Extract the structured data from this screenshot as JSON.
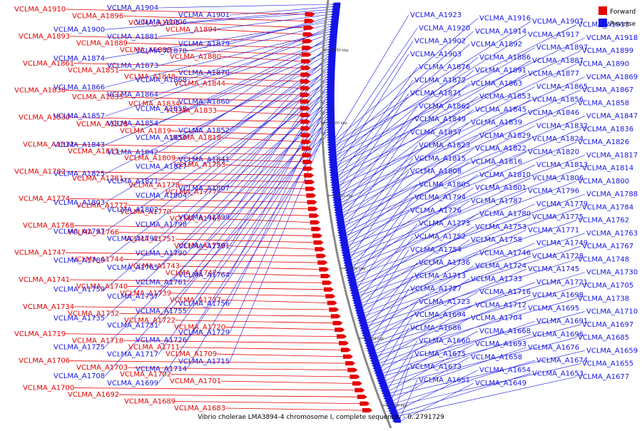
{
  "caption": "Vibrio cholerae LMA3894-4 chromosome I, complete sequence. - 0..2791729",
  "legend": {
    "forward": "Forward",
    "reverse": "Reverse"
  },
  "colors": {
    "forward": "#e60000",
    "reverse": "#1414e6",
    "backbone": "#888888"
  },
  "ticks": [
    "2150 kbp",
    "2100 kbp",
    "2050 kbp",
    "2000 kbp",
    "1950 kbp",
    "1900 kbp"
  ],
  "genes": {
    "forward": [
      "VCLMA_A1910",
      "VCLMA_A1896",
      "VCLMA_A1895",
      "VCLMA_A1894",
      "VCLMA_A1893",
      "VCLMA_A1889",
      "VCLMA_A1888",
      "VCLMA_A1880",
      "VCLMA_A1861",
      "VCLMA_A1851",
      "VCLMA_A1848",
      "VCLMA_A1844",
      "VCLMA_A1838",
      "VCLMA_A1835",
      "VCLMA_A1834",
      "VCLMA_A1833",
      "VCLMA_A1830",
      "VCLMA_A1828",
      "VCLMA_A1819",
      "VCLMA_A1818",
      "VCLMA_A1812",
      "VCLMA_A1811",
      "VCLMA_A1809",
      "VCLMA_A1783",
      "VCLMA_A1782",
      "VCLMA_A1781",
      "VCLMA_A1778",
      "VCLMA_A1777",
      "VCLMA_A1774",
      "VCLMA_A1772",
      "VCLMA_A1770",
      "VCLMA_A1769",
      "VCLMA_A1768",
      "VCLMA_A1766",
      "VCLMA_A1751",
      "VCLMA_A1750",
      "VCLMA_A1747",
      "VCLMA_A1744",
      "VCLMA_A1743",
      "VCLMA_A1742",
      "VCLMA_A1741",
      "VCLMA_A1740",
      "VCLMA_A1739",
      "VCLMA_A1737",
      "VCLMA_A1734",
      "VCLMA_A1732",
      "VCLMA_A1722",
      "VCLMA_A1720",
      "VCLMA_A1719",
      "VCLMA_A1718",
      "VCLMA_A1711",
      "VCLMA_A1709",
      "VCLMA_A1706",
      "VCLMA_A1703",
      "VCLMA_A1702",
      "VCLMA_A1701",
      "VCLMA_A1700",
      "VCLMA_A1692",
      "VCLMA_A1689",
      "VCLMA_A1683"
    ],
    "reverse": [
      "VCLMA_A1904",
      "VCLMA_A1901",
      "VCLMA_A1906",
      "VCLMA_A1900",
      "VCLMA_A1881",
      "VCLMA_A1879",
      "VCLMA_A1878",
      "VCLMA_A1874",
      "VCLMA_A1873",
      "VCLMA_A1870",
      "VCLMA_A1868",
      "VCLMA_A1866",
      "VCLMA_A1864",
      "VCLMA_A1860",
      "VCLMA_A1859",
      "VCLMA_A1857",
      "VCLMA_A1854",
      "VCLMA_A1852",
      "VCLMA_A1850",
      "VCLMA_A1843",
      "VCLMA_A1842",
      "VCLMA_A1841",
      "VCLMA_A1827",
      "VCLMA_A1825",
      "VCLMA_A1821",
      "VCLMA_A1807",
      "VCLMA_A1804",
      "VCLMA_A1803",
      "VCLMA_A1802",
      "VCLMA_A1799",
      "VCLMA_A1798",
      "VCLMA_A1797",
      "VCLMA_A1792",
      "VCLMA_A1791",
      "VCLMA_A1790",
      "VCLMA_A1789",
      "VCLMA_A1765",
      "VCLMA_A1764",
      "VCLMA_A1761",
      "VCLMA_A1759",
      "VCLMA_A1757",
      "VCLMA_A1756",
      "VCLMA_A1755",
      "VCLMA_A1735",
      "VCLMA_A1731",
      "VCLMA_A1729",
      "VCLMA_A1726",
      "VCLMA_A1725",
      "VCLMA_A1717",
      "VCLMA_A1715",
      "VCLMA_A1714",
      "VCLMA_A1708",
      "VCLMA_A1699",
      "VCLMA_A1923",
      "VCLMA_A1916",
      "VCLMA_A1907",
      "VCLMA_A1913",
      "VCLMA_A1920",
      "VCLMA_A1914",
      "VCLMA_A1917",
      "VCLMA_A1918",
      "VCLMA_A1902",
      "VCLMA_A1892",
      "VCLMA_A1897",
      "VCLMA_A1899",
      "VCLMA_A1903",
      "VCLMA_A1886",
      "VCLMA_A1887",
      "VCLMA_A1890",
      "VCLMA_A1876",
      "VCLMA_A1891",
      "VCLMA_A1877",
      "VCLMA_A1869",
      "VCLMA_A1872",
      "VCLMA_A1863",
      "VCLMA_A1865",
      "VCLMA_A1867",
      "VCLMA_A1871",
      "VCLMA_A1853",
      "VCLMA_A1856",
      "VCLMA_A1858",
      "VCLMA_A1862",
      "VCLMA_A1845",
      "VCLMA_A1846",
      "VCLMA_A1847",
      "VCLMA_A1849",
      "VCLMA_A1839",
      "VCLMA_A1832",
      "VCLMA_A1836",
      "VCLMA_A1837",
      "VCLMA_A1829",
      "VCLMA_A1824",
      "VCLMA_A1826",
      "VCLMA_A1823",
      "VCLMA_A1822",
      "VCLMA_A1820",
      "VCLMA_A1817",
      "VCLMA_A1815",
      "VCLMA_A1816",
      "VCLMA_A1813",
      "VCLMA_A1814",
      "VCLMA_A1808",
      "VCLMA_A1810",
      "VCLMA_A1806",
      "VCLMA_A1800",
      "VCLMA_A1805",
      "VCLMA_A1801",
      "VCLMA_A1796",
      "VCLMA_A1788",
      "VCLMA_A1794",
      "VCLMA_A1787",
      "VCLMA_A1779",
      "VCLMA_A1784",
      "VCLMA_A1776",
      "VCLMA_A1780",
      "VCLMA_A1775",
      "VCLMA_A1762",
      "VCLMA_A1773",
      "VCLMA_A1753",
      "VCLMA_A1771",
      "VCLMA_A1763",
      "VCLMA_A1752",
      "VCLMA_A1758",
      "VCLMA_A1749",
      "VCLMA_A1767",
      "VCLMA_A1754",
      "VCLMA_A1746",
      "VCLMA_A1728",
      "VCLMA_A1748",
      "VCLMA_A1736",
      "VCLMA_A1724",
      "VCLMA_A1745",
      "VCLMA_A1730",
      "VCLMA_A1713",
      "VCLMA_A1733",
      "VCLMA_A1721",
      "VCLMA_A1705",
      "VCLMA_A1727",
      "VCLMA_A1716",
      "VCLMA_A1698",
      "VCLMA_A1738",
      "VCLMA_A1723",
      "VCLMA_A1712",
      "VCLMA_A1695",
      "VCLMA_A1710",
      "VCLMA_A1694",
      "VCLMA_A1704",
      "VCLMA_A1691",
      "VCLMA_A1697",
      "VCLMA_A1686",
      "VCLMA_A1668",
      "VCLMA_A1696",
      "VCLMA_A1685",
      "VCLMA_A1660",
      "VCLMA_A1693",
      "VCLMA_A1676",
      "VCLMA_A1659",
      "VCLMA_A1675",
      "VCLMA_A1658",
      "VCLMA_A1674",
      "VCLMA_A1655",
      "VCLMA_A1673",
      "VCLMA_A1654",
      "VCLMA_A1653",
      "VCLMA_A1677",
      "VCLMA_A1651",
      "VCLMA_A1649"
    ]
  }
}
